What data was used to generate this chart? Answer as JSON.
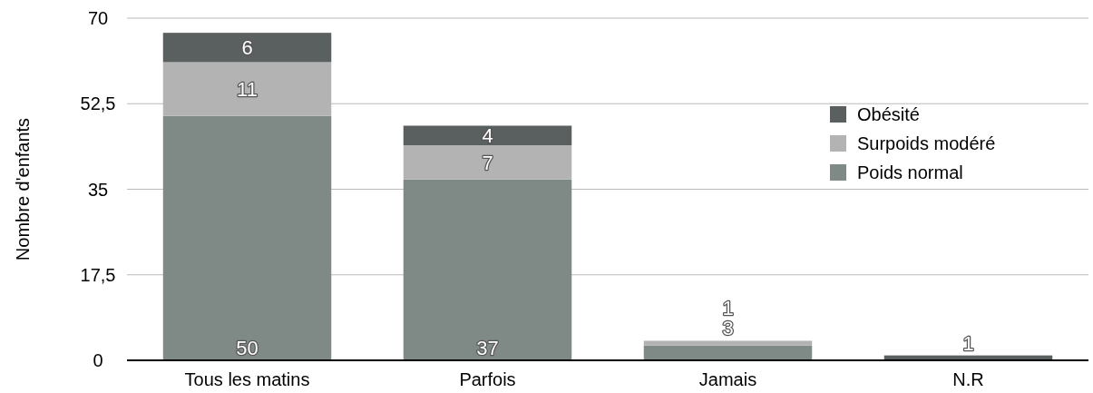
{
  "chart_data": {
    "type": "bar",
    "stacked": true,
    "ylabel": "Nombre d'enfants",
    "categories": [
      "Tous les matins",
      "Parfois",
      "Jamais",
      "N.R"
    ],
    "series": [
      {
        "name": "Poids normal",
        "color": "#7f8a87",
        "values": [
          50,
          37,
          3,
          null
        ]
      },
      {
        "name": "Surpoids modéré",
        "color": "#b3b3b3",
        "values": [
          11,
          7,
          1,
          null
        ]
      },
      {
        "name": "Obésité",
        "color": "#5a605f",
        "values": [
          6,
          4,
          null,
          1
        ]
      }
    ],
    "ylim": [
      0,
      70
    ],
    "yticks": [
      0,
      {
        "value": 17.5,
        "label": "17,5"
      },
      35,
      {
        "value": 52.5,
        "label": "52,5"
      },
      70
    ],
    "grid": "y",
    "legend": "top right",
    "data_labels": true
  }
}
